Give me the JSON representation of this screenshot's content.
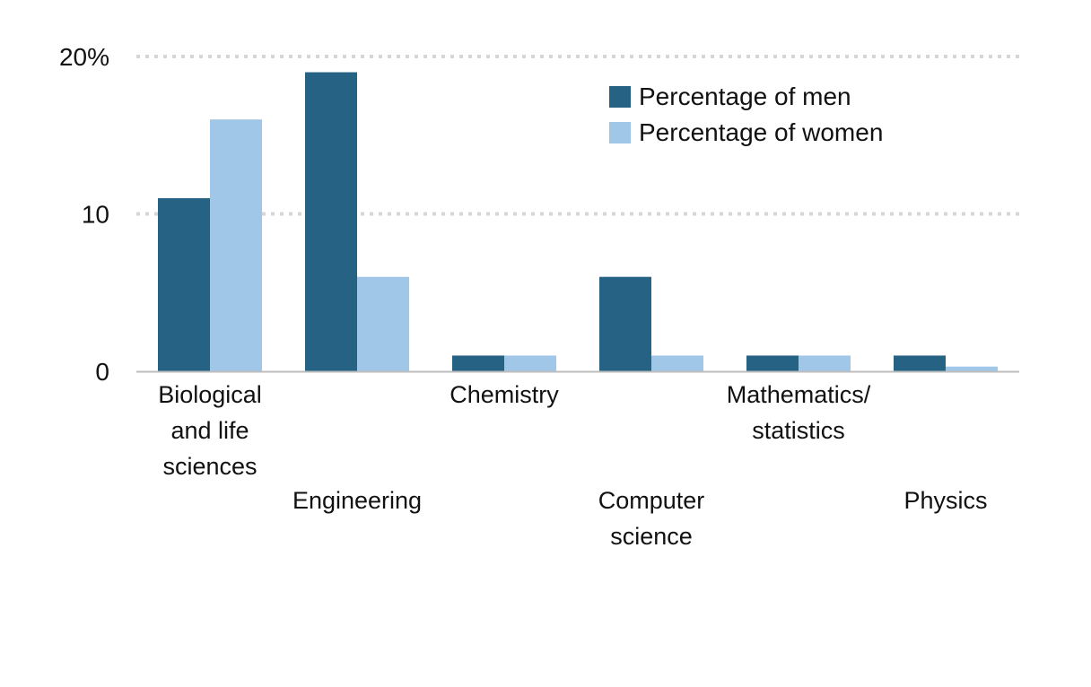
{
  "chart_data": {
    "type": "bar",
    "categories": [
      "Biological and life sciences",
      "Engineering",
      "Chemistry",
      "Computer science",
      "Mathematics/ statistics",
      "Physics"
    ],
    "category_label_lines": [
      [
        "Biological",
        "and life",
        "sciences"
      ],
      [
        "Engineering"
      ],
      [
        "Chemistry"
      ],
      [
        "Computer",
        "science"
      ],
      [
        "Mathematics/",
        "statistics"
      ],
      [
        "Physics"
      ]
    ],
    "series": [
      {
        "name": "Percentage of men",
        "color": "#256283",
        "values": [
          11,
          19,
          1,
          6,
          1,
          1
        ]
      },
      {
        "name": "Percentage of women",
        "color": "#a0c6e8",
        "values": [
          16,
          6,
          1,
          1,
          1,
          0.3
        ]
      }
    ],
    "y_ticks": [
      {
        "value": 0,
        "label": "0"
      },
      {
        "value": 10,
        "label": "10"
      },
      {
        "value": 20,
        "label": "20%"
      }
    ],
    "ylim": [
      0,
      20
    ],
    "grid": true,
    "legend_position": "top-right",
    "title": "",
    "xlabel": "",
    "ylabel": ""
  }
}
